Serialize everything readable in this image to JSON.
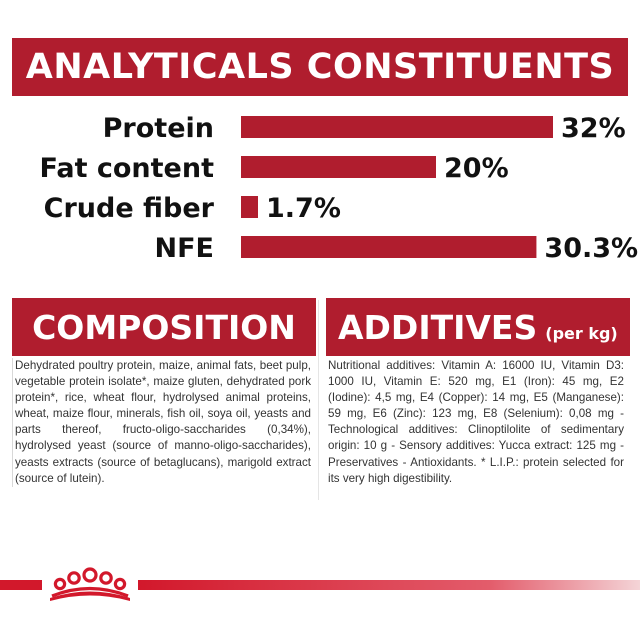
{
  "header": {
    "title": "ANALYTICALS CONSTITUENTS"
  },
  "chart_data": {
    "type": "bar",
    "orientation": "horizontal",
    "categories": [
      "Protein",
      "Fat content",
      "Crude fiber",
      "NFE"
    ],
    "values": [
      32,
      20,
      1.7,
      30.3
    ],
    "value_labels": [
      "32%",
      "20%",
      "1.7%",
      "30.3%"
    ],
    "unit": "%",
    "xlim": [
      0,
      32
    ],
    "grid": false,
    "legend": "none",
    "bar_color": "#b01d2e"
  },
  "composition": {
    "title": "COMPOSITION",
    "text": "Dehydrated poultry protein, maize, animal fats, beet pulp, vegetable protein isolate*, maize gluten, dehydrated pork protein*, rice, wheat flour, hydrolysed animal proteins, wheat, maize flour, minerals, fish oil, soya oil, yeasts and parts thereof, fructo-oligo-saccharides (0,34%), hydrolysed yeast (source of manno-oligo-saccharides), yeasts extracts (source of betaglucans), marigold extract (source of lutein)."
  },
  "additives": {
    "title": "ADDITIVES",
    "subtitle": "(per kg)",
    "text": "Nutritional additives: Vitamin A: 16000 IU, Vitamin D3: 1000 IU, Vitamin E: 520 mg, E1 (Iron): 45 mg, E2 (Iodine): 4,5 mg, E4 (Copper): 14 mg, E5 (Manganese): 59 mg, E6 (Zinc): 123 mg, E8 (Selenium): 0,08 mg - Technological additives: Clinoptilolite of sedimentary origin: 10 g - Sensory additives: Yucca extract: 125 mg - Preservatives - Antioxidants. * L.I.P.: protein selected for its very high digestibility."
  },
  "footer": {
    "logo_icon": "crown-icon",
    "accent_color": "#d2182b"
  }
}
